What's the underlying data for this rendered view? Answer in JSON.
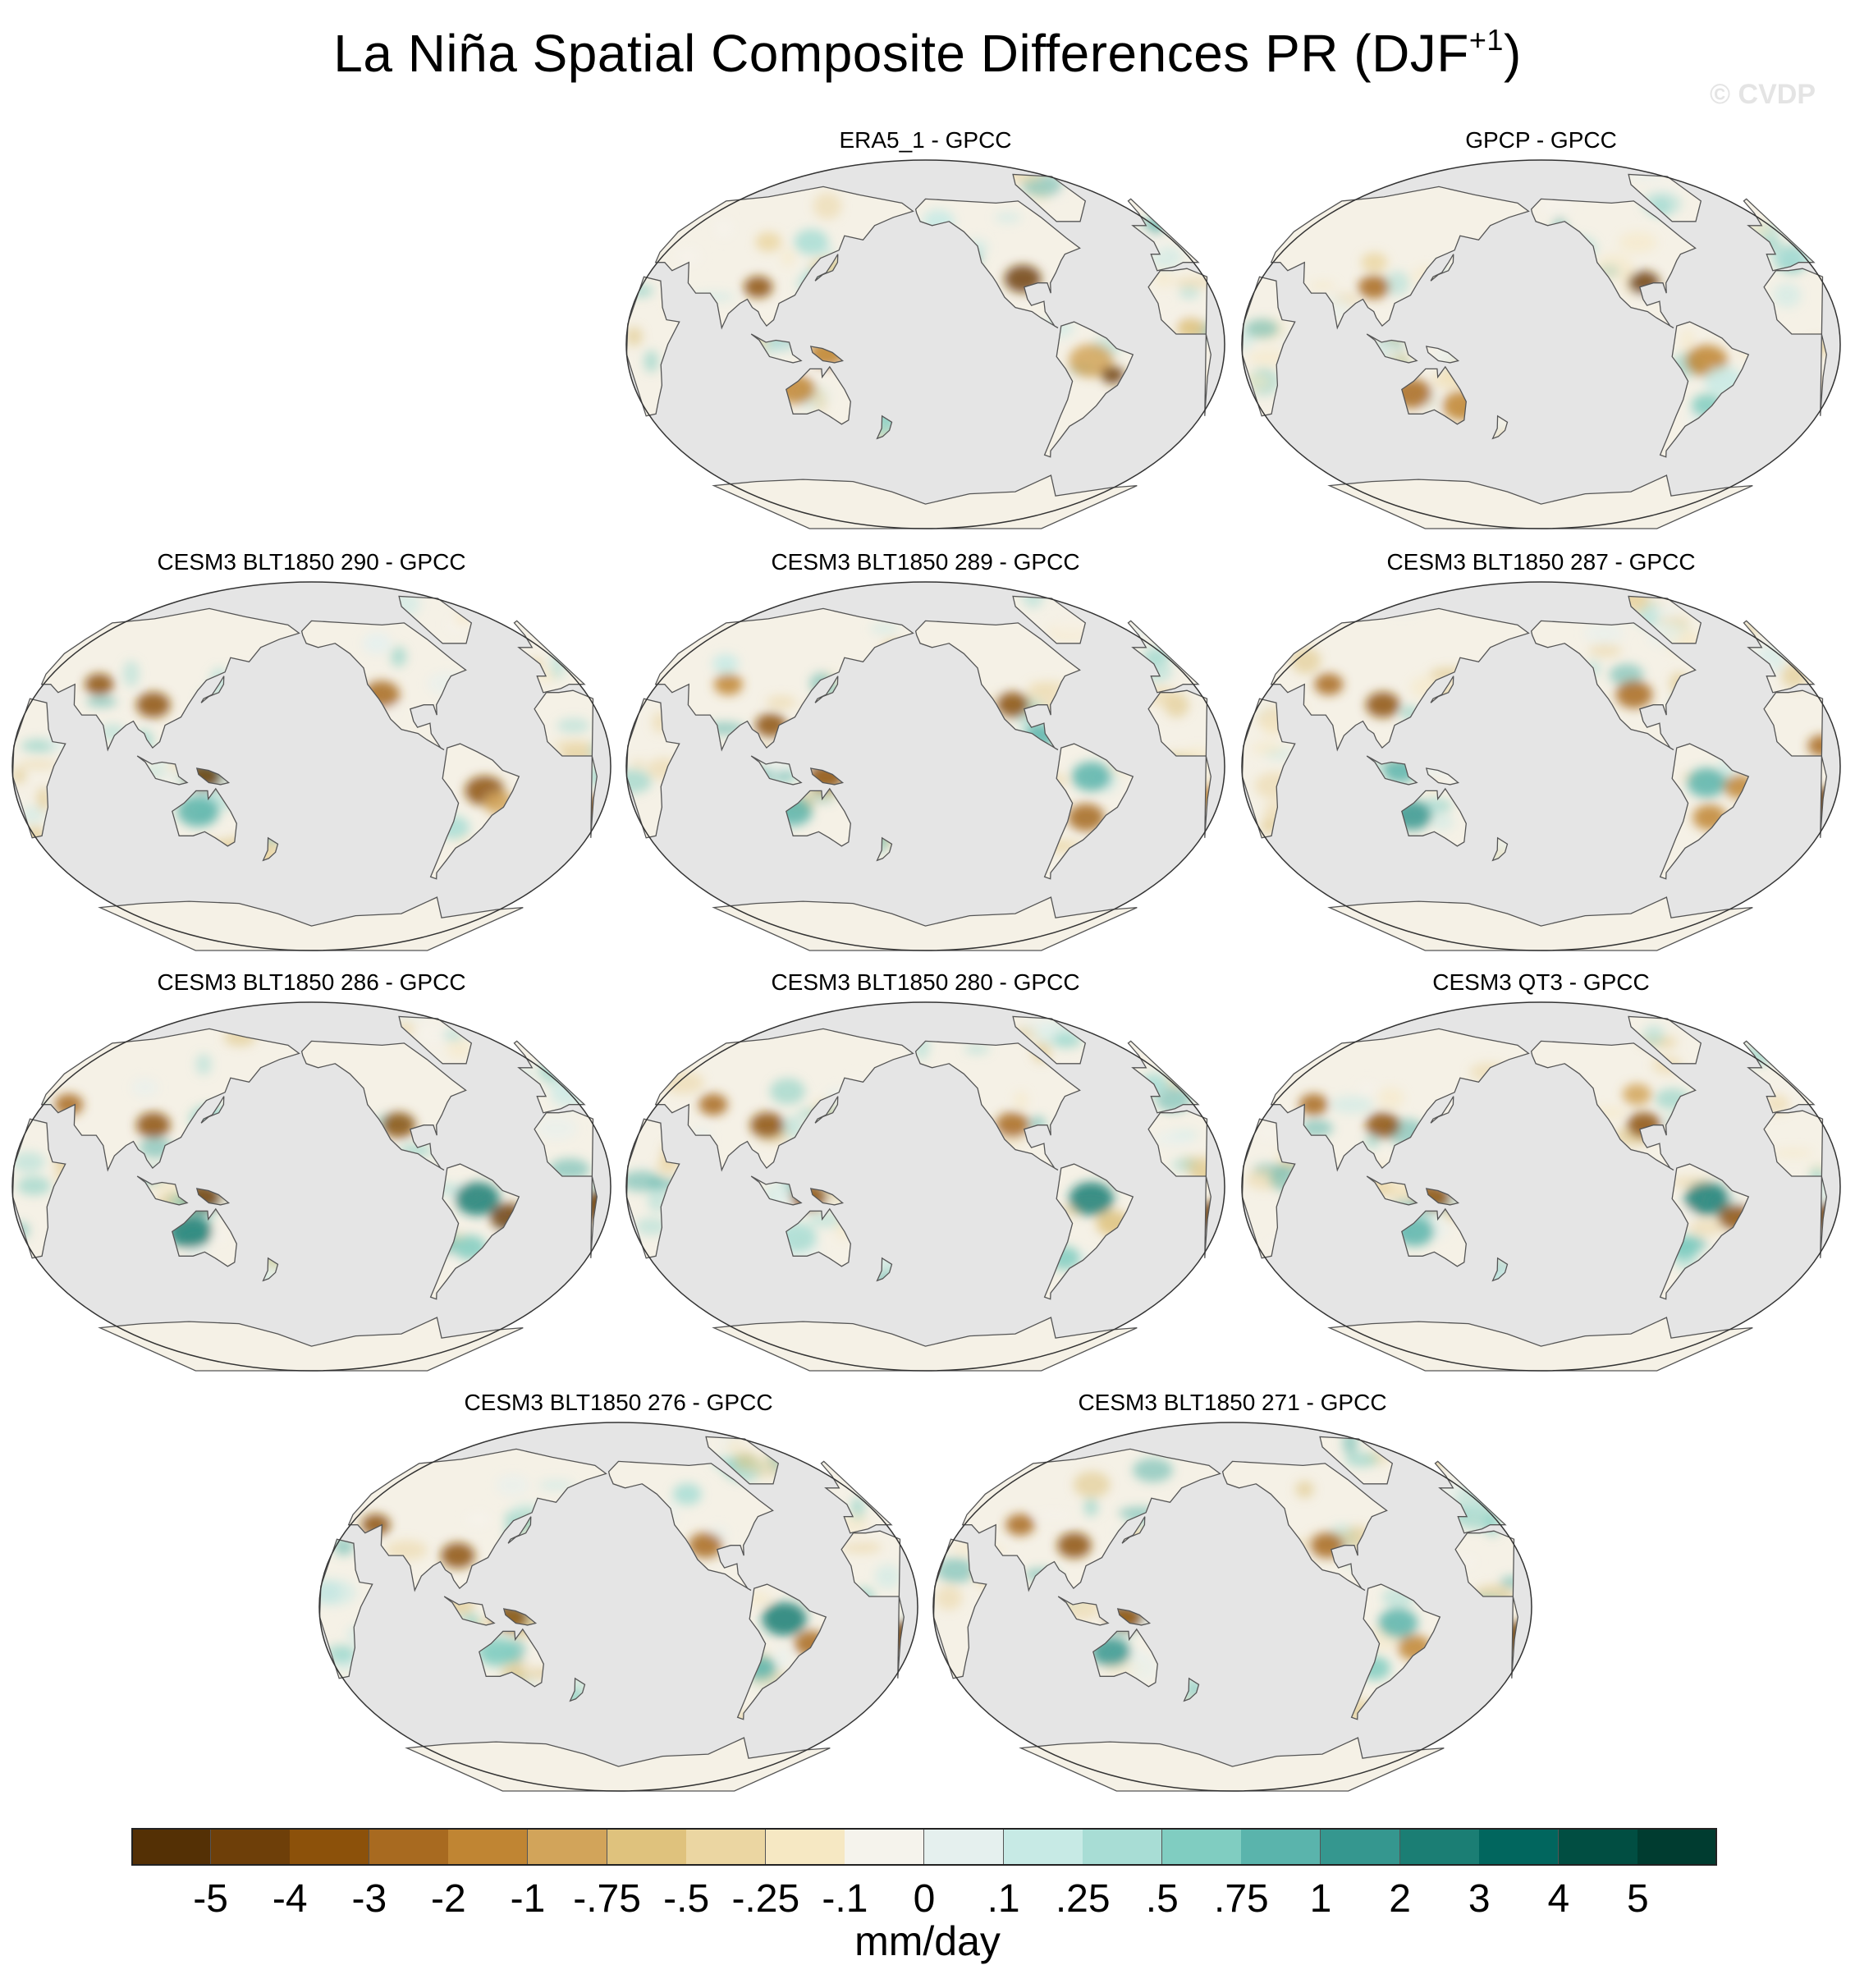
{
  "title": "La Niña Spatial Composite Differences PR (DJF",
  "title_superscript": "+1",
  "title_close": ")",
  "watermark": "© CVDP",
  "panels": [
    {
      "label": "ERA5_1 - GPCC"
    },
    {
      "label": "GPCP - GPCC"
    },
    {
      "label": "CESM3 BLT1850 290 - GPCC"
    },
    {
      "label": "CESM3 BLT1850 289 - GPCC"
    },
    {
      "label": "CESM3 BLT1850 287 - GPCC"
    },
    {
      "label": "CESM3 BLT1850 286 - GPCC"
    },
    {
      "label": "CESM3 BLT1850 280 - GPCC"
    },
    {
      "label": "CESM3 QT3 - GPCC"
    },
    {
      "label": "CESM3 BLT1850 276 - GPCC"
    },
    {
      "label": "CESM3 BLT1850 271 - GPCC"
    }
  ],
  "colorbar": {
    "labels": [
      "-5",
      "-4",
      "-3",
      "-2",
      "-1",
      "-.75",
      "-.5",
      "-.25",
      "-.1",
      "0",
      ".1",
      ".25",
      ".5",
      ".75",
      "1",
      "2",
      "3",
      "4",
      "5"
    ],
    "colors": [
      "#543005",
      "#6e3f09",
      "#8c510a",
      "#a86a20",
      "#c08533",
      "#d2a45a",
      "#dfc27d",
      "#ebd6a2",
      "#f6e8c3",
      "#f5f3ec",
      "#e5f0ee",
      "#c7eae5",
      "#a8ddd5",
      "#80cdc1",
      "#5ab4ac",
      "#35978f",
      "#1b7e74",
      "#01665e",
      "#014e42",
      "#003c30"
    ],
    "units": "mm/day"
  },
  "map": {
    "ocean_color": "#e5e5e5",
    "land_base_color": "#f5f1e6",
    "coast_color": "#555555"
  }
}
